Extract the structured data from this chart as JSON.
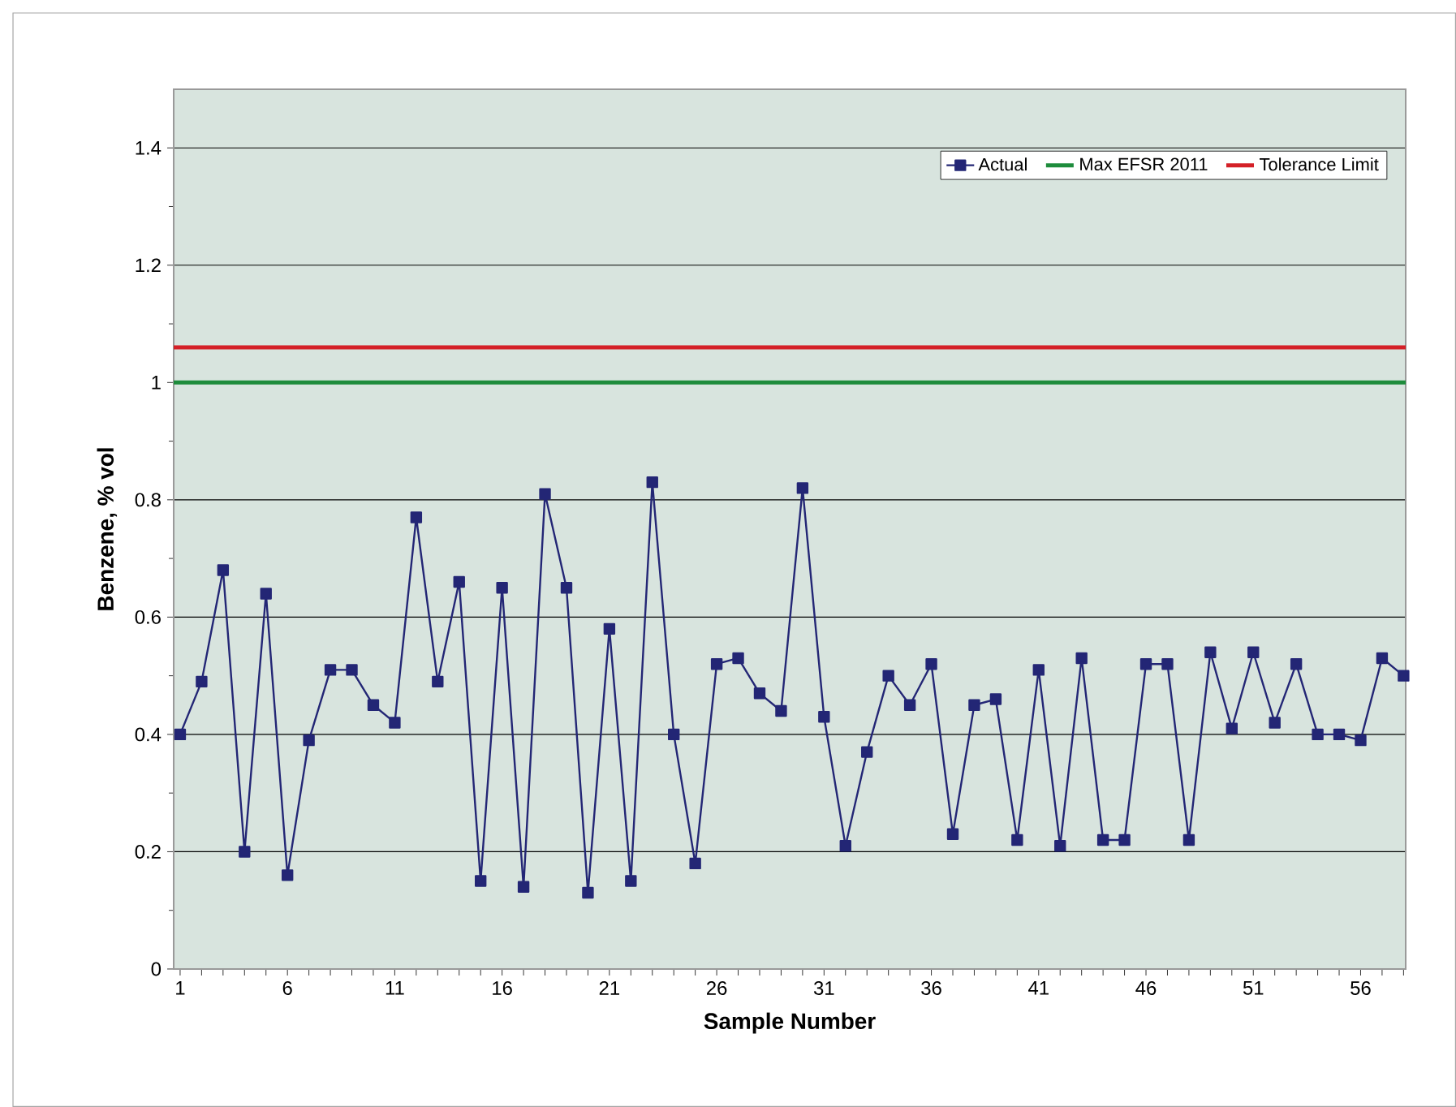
{
  "chart_data": {
    "type": "line",
    "xlabel": "Sample Number",
    "ylabel": "Benzene, % vol",
    "categories": [
      "1",
      null,
      null,
      null,
      null,
      "6",
      null,
      null,
      null,
      null,
      "11",
      null,
      null,
      null,
      null,
      "16",
      null,
      null,
      null,
      null,
      "21",
      null,
      null,
      null,
      null,
      "26",
      null,
      null,
      null,
      null,
      "31",
      null,
      null,
      null,
      null,
      "36",
      null,
      null,
      null,
      null,
      "41",
      null,
      null,
      null,
      null,
      "46",
      null,
      null,
      null,
      null,
      "51",
      null,
      null,
      null,
      null,
      "56",
      null,
      null
    ],
    "series": [
      {
        "name": "Actual",
        "color": "#232675",
        "marker": "square",
        "values": [
          0.4,
          0.49,
          0.68,
          0.2,
          0.64,
          0.16,
          0.39,
          0.51,
          0.51,
          0.45,
          0.42,
          0.77,
          0.49,
          0.66,
          0.15,
          0.65,
          0.14,
          0.81,
          0.65,
          0.13,
          0.58,
          0.15,
          0.83,
          0.4,
          0.18,
          0.52,
          0.53,
          0.47,
          0.44,
          0.82,
          0.43,
          0.21,
          0.37,
          0.5,
          0.45,
          0.52,
          0.23,
          0.45,
          0.46,
          0.22,
          0.51,
          0.21,
          0.53,
          0.22,
          0.22,
          0.52,
          0.52,
          0.22,
          0.54,
          0.41,
          0.54,
          0.42,
          0.52,
          0.4,
          0.4,
          0.39,
          0.53,
          0.5
        ]
      }
    ],
    "ref_lines": [
      {
        "axis": "y",
        "value": 1.0,
        "label": "Max EFSR 2011",
        "color": "#1e8c3c"
      },
      {
        "axis": "y",
        "value": 1.06,
        "label": "Tolerance Limit",
        "color": "#d42027"
      }
    ],
    "ylim": [
      0,
      1.5
    ],
    "yticks": [
      0,
      0.2,
      0.4,
      0.6,
      0.8,
      1,
      1.2,
      1.4
    ],
    "grid": "y",
    "legend": "top right",
    "line_style": "solid"
  }
}
